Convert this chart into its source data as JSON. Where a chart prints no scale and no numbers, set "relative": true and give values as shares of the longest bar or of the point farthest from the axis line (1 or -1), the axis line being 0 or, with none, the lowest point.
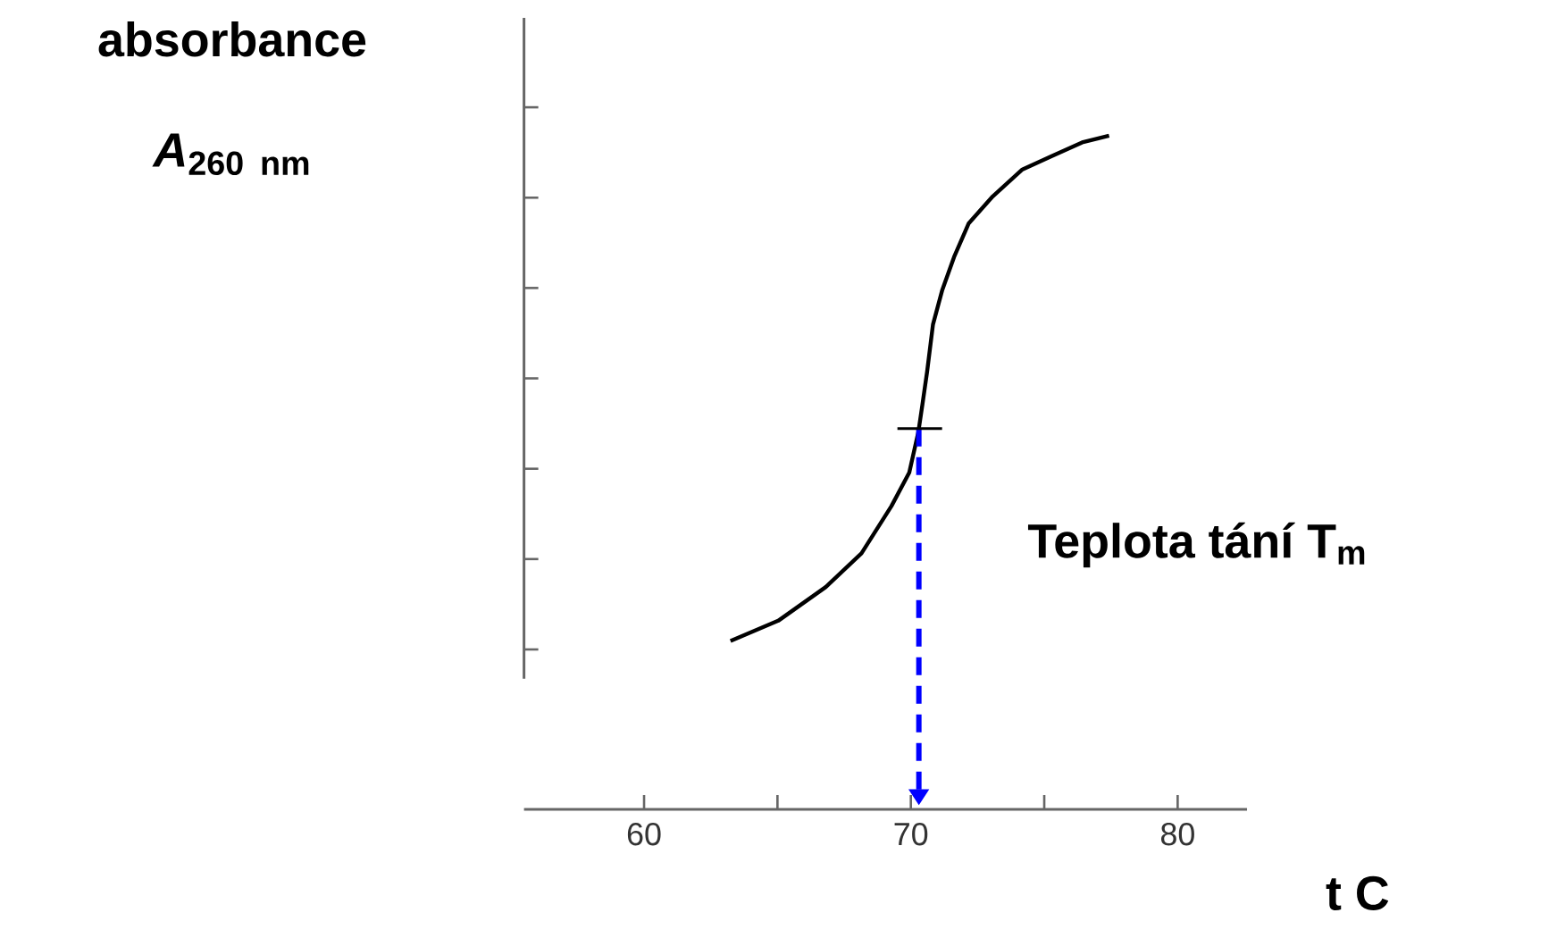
{
  "chart_data": {
    "type": "line",
    "ylabel": "absorbance *A*$_{260 nm}$",
    "xlabel": "t C",
    "x": [
      63.24,
      65.03,
      66.81,
      68.15,
      69.27,
      69.94,
      70.28,
      70.43,
      70.61,
      70.83,
      71.17,
      71.62,
      72.17,
      73.07,
      74.18,
      75.3,
      76.42,
      77.43
    ],
    "values": [
      0.25,
      0.28,
      0.33,
      0.38,
      0.45,
      0.5,
      0.56,
      0.6,
      0.65,
      0.72,
      0.77,
      0.82,
      0.87,
      0.91,
      0.95,
      0.97,
      0.99,
      1
    ],
    "color": "#000000",
    "relative": true,
    "xlim": [
      55.5,
      82.6
    ],
    "xticks": [
      60,
      {
        "value": 65,
        "label": null
      },
      70,
      {
        "value": 75,
        "label": null
      },
      80
    ],
    "ref_lines": [
      {
        "axis": "x",
        "value": 70.3,
        "label": "Teplota tání T$_{m}$",
        "color": "#0000ff",
        "line_style": "dashed"
      }
    ]
  }
}
